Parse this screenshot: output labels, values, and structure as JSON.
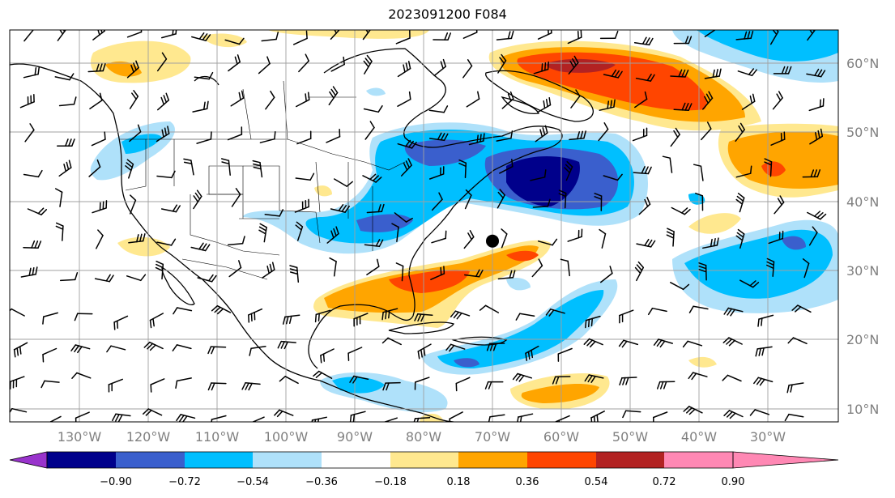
{
  "title": "2023091200 F084",
  "latitude_labels": [
    "60°N",
    "50°N",
    "40°N",
    "30°N",
    "20°N",
    "10°N"
  ],
  "longitude_labels": [
    "130°W",
    "120°W",
    "110°W",
    "100°W",
    "90°W",
    "80°W",
    "70°W",
    "60°W",
    "50°W",
    "40°W",
    "30°W"
  ],
  "colorbar": {
    "levels": [
      "−0.90",
      "−0.72",
      "−0.54",
      "−0.36",
      "−0.18",
      "0.18",
      "0.36",
      "0.54",
      "0.72",
      "0.90"
    ],
    "colors": [
      "#9933cc",
      "#00008b",
      "#3a5fcd",
      "#00bfff",
      "#afe1fa",
      "#ffffff",
      "#ffe88f",
      "#ffa500",
      "#ff4500",
      "#b22222",
      "#ff88b4"
    ]
  },
  "map": {
    "lon_range": [
      -138,
      -17
    ],
    "lat_range": [
      8,
      65
    ],
    "marker": {
      "lon": -67.5,
      "lat": 34.3
    }
  }
}
